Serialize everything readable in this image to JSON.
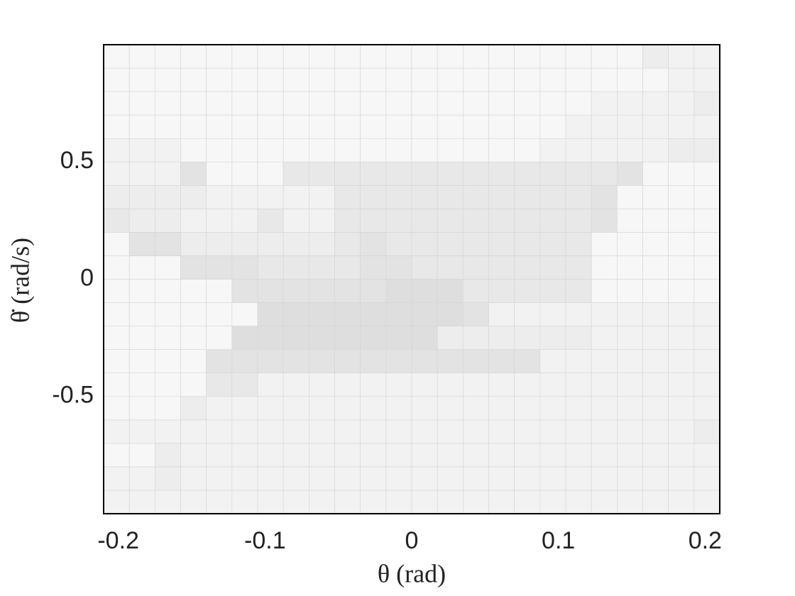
{
  "chart_data": {
    "type": "heatmap",
    "xlabel": "θ (rad)",
    "ylabel": "θ̇ (rad/s)",
    "xlim": [
      -0.21,
      0.21
    ],
    "ylim": [
      -1,
      1
    ],
    "xticks": [
      -0.2,
      -0.1,
      0,
      0.1,
      0.2
    ],
    "yticks": [
      -0.5,
      0,
      0.5
    ],
    "colormap": [
      "#f7f7f7",
      "#d9d9d9"
    ],
    "clim": [
      0,
      3
    ],
    "z": [
      [
        0.5,
        0.5,
        0.5,
        0.5,
        0.5,
        0.5,
        0.5,
        0.5,
        0.5,
        0.5,
        0.5,
        0.5,
        0.5,
        0.5,
        0.5,
        0.5,
        0.5,
        0.5,
        0.5,
        0.5,
        0.5,
        0.5,
        0.5,
        0.5
      ],
      [
        0.5,
        0.5,
        1,
        0.5,
        0.5,
        0.5,
        0.5,
        0.5,
        0.5,
        0.5,
        0.5,
        0.5,
        0.5,
        0.5,
        0.5,
        0.5,
        0.5,
        0.5,
        0.5,
        0.5,
        0.5,
        0.5,
        0.5,
        0.5
      ],
      [
        0,
        0,
        1,
        0.5,
        0.5,
        0.5,
        0.5,
        0.5,
        0.5,
        0.5,
        0.5,
        0.5,
        0.5,
        0.5,
        0.5,
        0.5,
        0.5,
        0.5,
        0.5,
        0.5,
        0.5,
        0.5,
        0.5,
        0.5
      ],
      [
        0.5,
        0.5,
        0.5,
        0.5,
        0.5,
        0.5,
        0.5,
        0.5,
        0.5,
        0.5,
        0.5,
        0.5,
        0.5,
        0.5,
        0.5,
        0.5,
        0.5,
        0.5,
        0.5,
        0.5,
        0.5,
        0.5,
        0.5,
        1
      ],
      [
        0,
        0,
        0,
        1,
        0.5,
        0.5,
        0.5,
        0.5,
        0.5,
        0.5,
        0.5,
        0.5,
        0.5,
        0.5,
        0.5,
        0.5,
        0.5,
        0.5,
        0.5,
        0.5,
        0.5,
        0.5,
        0.5,
        0.5
      ],
      [
        0,
        0,
        0,
        0,
        1.5,
        1.5,
        0.5,
        0.5,
        0.5,
        0.5,
        0.5,
        0.5,
        0.5,
        0.5,
        0.5,
        0.5,
        0.5,
        0.5,
        0.5,
        0.5,
        0.5,
        0.5,
        0.5,
        0.5
      ],
      [
        0,
        0,
        0,
        0,
        2,
        2,
        2,
        2,
        2,
        2,
        2,
        2,
        2,
        2,
        2,
        2,
        2,
        0.5,
        0.5,
        0.5,
        0.5,
        0.5,
        0.5,
        0.5
      ],
      [
        0,
        0,
        0,
        0,
        0,
        2.5,
        2.5,
        2.5,
        2.5,
        2.5,
        2.5,
        2.5,
        2.5,
        1,
        1,
        1,
        1,
        1,
        1,
        0.5,
        0.5,
        0.5,
        0.5,
        0.5
      ],
      [
        0,
        0,
        0,
        0,
        0,
        0,
        2.5,
        2.5,
        2.5,
        2.5,
        2.5,
        2.5,
        2.5,
        2.5,
        2,
        0.5,
        0.5,
        0.5,
        0.5,
        0.5,
        0.5,
        0.5,
        0.5,
        0.5
      ],
      [
        0,
        0,
        0,
        0,
        0,
        2,
        2,
        2,
        2,
        2,
        2,
        2.5,
        2.5,
        2.5,
        1.5,
        1.5,
        1.5,
        1.5,
        1.5,
        0,
        0,
        0,
        0,
        0
      ],
      [
        0,
        0,
        0,
        2,
        2,
        2,
        1.5,
        1.5,
        1.5,
        1.5,
        2,
        2,
        1.5,
        1.5,
        1.5,
        1.5,
        1.5,
        1.5,
        1.5,
        0,
        0,
        0,
        0,
        0
      ],
      [
        0,
        2,
        2,
        1,
        1,
        1,
        1,
        1,
        1,
        1.5,
        2,
        1.5,
        1.5,
        1.5,
        1.5,
        1.5,
        1.5,
        1.5,
        1.5,
        0,
        0,
        0,
        0,
        0
      ],
      [
        1.5,
        1,
        1,
        0.5,
        0.5,
        0.5,
        1.5,
        0.5,
        0.5,
        1.5,
        1.5,
        1.5,
        1.5,
        1.5,
        1.5,
        1.5,
        1.5,
        1.5,
        1.5,
        2,
        0,
        0,
        0,
        0
      ],
      [
        1,
        1,
        1,
        1,
        0.5,
        0.5,
        0.5,
        0.5,
        0.5,
        1.5,
        1.5,
        1.5,
        1.5,
        1.5,
        1.5,
        1.5,
        1.5,
        1.5,
        1.5,
        2,
        0,
        0,
        0,
        0
      ],
      [
        0.5,
        0.5,
        0.5,
        2,
        0,
        0,
        0,
        1.5,
        1.5,
        1.5,
        1.5,
        1.5,
        1.5,
        1.5,
        1.5,
        1.5,
        1.5,
        1.5,
        1.5,
        1.5,
        2,
        0,
        0,
        0
      ],
      [
        0.5,
        0.5,
        0.5,
        0,
        0,
        0,
        0,
        0,
        0,
        0,
        0,
        0,
        0,
        0,
        0,
        0,
        0,
        0.5,
        0.5,
        0.5,
        0.5,
        0.5,
        1,
        1
      ],
      [
        0,
        0,
        0,
        0,
        0,
        0,
        0,
        0,
        0,
        0,
        0,
        0,
        0,
        0,
        0,
        0,
        0,
        0,
        0.5,
        0.5,
        0.5,
        0.5,
        0.5,
        0.5
      ],
      [
        0,
        0,
        0,
        0,
        0,
        0,
        0,
        0,
        0,
        0,
        0,
        0,
        0,
        0,
        0,
        0,
        0,
        0,
        0,
        0.5,
        0.5,
        0.5,
        0.5,
        1
      ],
      [
        0,
        0,
        0,
        0,
        0,
        0,
        0,
        0,
        0,
        0,
        0,
        0,
        0,
        0,
        0,
        0,
        0,
        0,
        0,
        0,
        0,
        0,
        0.5,
        0.5
      ],
      [
        0,
        0,
        0,
        0,
        0,
        0,
        0,
        0,
        0,
        0,
        0,
        0,
        0,
        0,
        0,
        0,
        0,
        0,
        0,
        0,
        0,
        1,
        0.5,
        0.5
      ]
    ]
  }
}
